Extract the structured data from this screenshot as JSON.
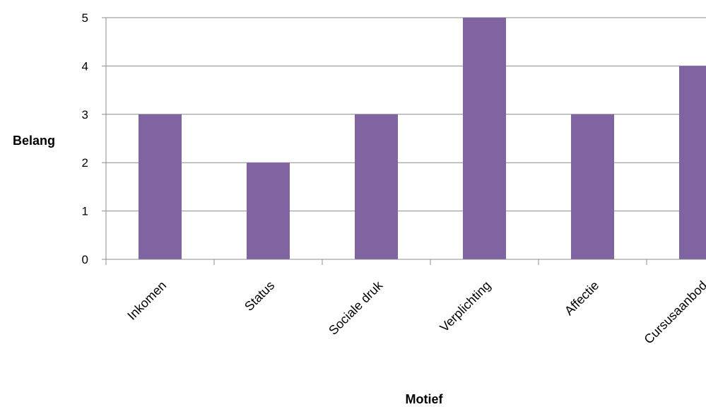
{
  "chart_data": {
    "type": "bar",
    "categories": [
      "Inkomen",
      "Status",
      "Sociale druk",
      "Verplichting",
      "Affectie",
      "Cursusaanbod"
    ],
    "values": [
      3,
      2,
      3,
      5,
      3,
      4
    ],
    "xlabel": "Motief",
    "ylabel": "Belang",
    "ylim": [
      0,
      5
    ],
    "yticks": [
      0,
      1,
      2,
      3,
      4,
      5
    ],
    "grid": true,
    "legend": "none",
    "bar_color": "#8064a2",
    "grid_color": "#8c8c8c"
  }
}
